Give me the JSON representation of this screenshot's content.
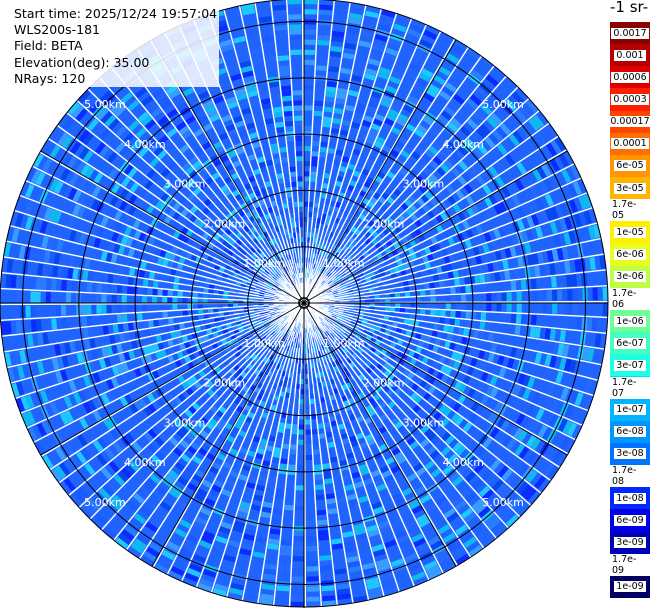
{
  "header": {
    "start_time": "Start time: 2025/12/24 19:57:04",
    "instrument": "WLS200s-181",
    "field": "Field: BETA",
    "elevation": "Elevation(deg): 35.00",
    "nrays": "NRays: 120"
  },
  "colorbar": {
    "title": "-1 sr-",
    "labels": [
      "0.0017",
      "0.001",
      "0.0006",
      "0.0003",
      "0.00017",
      "0.0001",
      "6e-05",
      "3e-05",
      "1.7e-05",
      "1e-05",
      "6e-06",
      "3e-06",
      "1.7e-06",
      "1e-06",
      "6e-07",
      "3e-07",
      "1.7e-07",
      "1e-07",
      "6e-08",
      "3e-08",
      "1.7e-08",
      "1e-08",
      "6e-09",
      "3e-09",
      "1.7e-09",
      "1e-09"
    ],
    "colors": [
      "#8b0000",
      "#b40000",
      "#dc0000",
      "#ff1e00",
      "#ff4600",
      "#ff6e00",
      "#ff9600",
      "#ffb400",
      "#ffd200",
      "#fff000",
      "#e6ff1e",
      "#beff46",
      "#96ff6e",
      "#6eff96",
      "#46ffbe",
      "#1effe6",
      "#00dcff",
      "#00b4ff",
      "#0096ff",
      "#0073ff",
      "#0050ff",
      "#0028ff",
      "#0000e6",
      "#0000b4",
      "#00008c",
      "#000064"
    ]
  },
  "chart_data": {
    "type": "heatmap",
    "title": "",
    "projection": "polar PPI",
    "field": "BETA",
    "elevation_deg": 35.0,
    "nrays": 120,
    "range_rings_km": [
      1.0,
      2.0,
      3.0,
      4.0,
      5.0
    ],
    "ring_labels": [
      "1.00km",
      "2.00km",
      "3.00km",
      "4.00km",
      "5.00km"
    ],
    "max_range_km": 5.4,
    "spokes_deg": [
      0,
      30,
      60,
      90,
      120,
      150,
      180,
      210,
      240,
      270,
      300,
      330
    ],
    "dominant_value_range": [
      "3e-08",
      "1e-08"
    ],
    "colorscale": "jet, log",
    "grid": true
  }
}
